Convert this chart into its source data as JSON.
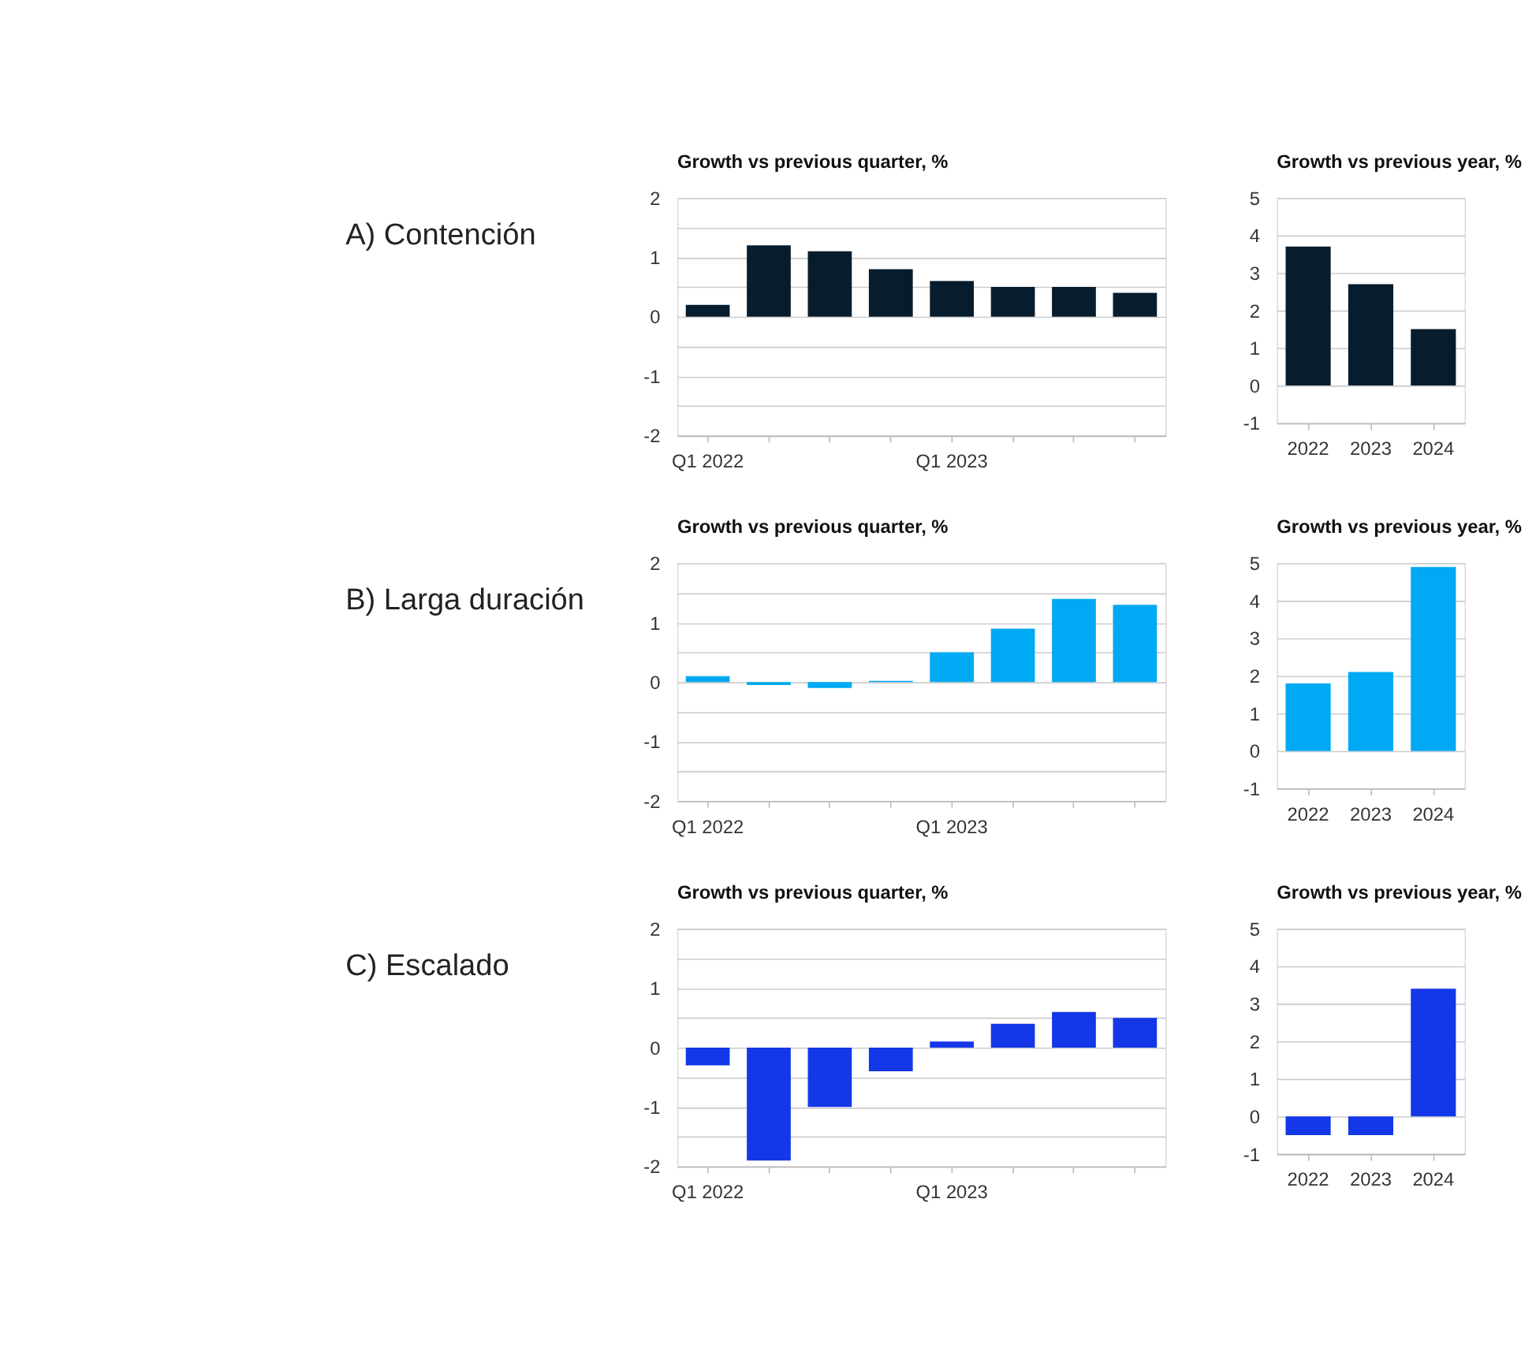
{
  "chart_data": [
    {
      "type": "bar",
      "title": "Growth vs previous quarter, %",
      "annotations": [
        "A) Contención"
      ],
      "categories": [
        "Q1 2022",
        null,
        null,
        null,
        "Q1 2023",
        null,
        null,
        null
      ],
      "values": [
        0.2,
        1.2,
        1.1,
        0.8,
        0.6,
        0.5,
        0.5,
        0.4
      ],
      "color": "#071d2d",
      "ylim": [
        -2,
        2
      ],
      "yticks": [
        -2,
        {
          "value": -1.5,
          "label": null
        },
        -1,
        {
          "value": -0.5,
          "label": null
        },
        0,
        {
          "value": 0.5,
          "label": null
        },
        1,
        {
          "value": 1.5,
          "label": null
        },
        2
      ],
      "grid": "y"
    },
    {
      "type": "bar",
      "title": "Growth vs previous year, %",
      "categories": [
        "2022",
        "2023",
        "2024"
      ],
      "values": [
        3.7,
        2.7,
        1.5
      ],
      "color": "#071d2d",
      "ylim": [
        -1,
        5
      ],
      "yticks": [
        -1,
        0,
        1,
        2,
        3,
        4,
        5
      ],
      "grid": "y"
    },
    {
      "type": "bar",
      "title": "Growth vs previous quarter, %",
      "annotations": [
        "B) Larga duración"
      ],
      "categories": [
        "Q1 2022",
        null,
        null,
        null,
        "Q1 2023",
        null,
        null,
        null
      ],
      "values": [
        0.1,
        -0.05,
        -0.1,
        0.02,
        0.5,
        0.9,
        1.4,
        1.3
      ],
      "color": "#00a9f4",
      "ylim": [
        -2,
        2
      ],
      "yticks": [
        -2,
        {
          "value": -1.5,
          "label": null
        },
        -1,
        {
          "value": -0.5,
          "label": null
        },
        0,
        {
          "value": 0.5,
          "label": null
        },
        1,
        {
          "value": 1.5,
          "label": null
        },
        2
      ],
      "grid": "y"
    },
    {
      "type": "bar",
      "title": "Growth vs previous year, %",
      "categories": [
        "2022",
        "2023",
        "2024"
      ],
      "values": [
        1.8,
        2.1,
        4.9
      ],
      "color": "#00a9f4",
      "ylim": [
        -1,
        5
      ],
      "yticks": [
        -1,
        0,
        1,
        2,
        3,
        4,
        5
      ],
      "grid": "y"
    },
    {
      "type": "bar",
      "title": "Growth vs previous quarter, %",
      "annotations": [
        "C) Escalado"
      ],
      "categories": [
        "Q1 2022",
        null,
        null,
        null,
        "Q1 2023",
        null,
        null,
        null
      ],
      "values": [
        -0.3,
        -1.9,
        -1.0,
        -0.4,
        0.1,
        0.4,
        0.6,
        0.5
      ],
      "color": "#1438e8",
      "ylim": [
        -2,
        2
      ],
      "yticks": [
        -2,
        {
          "value": -1.5,
          "label": null
        },
        -1,
        {
          "value": -0.5,
          "label": null
        },
        0,
        {
          "value": 0.5,
          "label": null
        },
        1,
        {
          "value": 1.5,
          "label": null
        },
        2
      ],
      "grid": "y"
    },
    {
      "type": "bar",
      "title": "Growth vs previous year, %",
      "categories": [
        "2022",
        "2023",
        "2024"
      ],
      "values": [
        -0.5,
        -0.5,
        3.4
      ],
      "color": "#1438e8",
      "ylim": [
        -1,
        5
      ],
      "yticks": [
        -1,
        0,
        1,
        2,
        3,
        4,
        5
      ],
      "grid": "y"
    }
  ]
}
